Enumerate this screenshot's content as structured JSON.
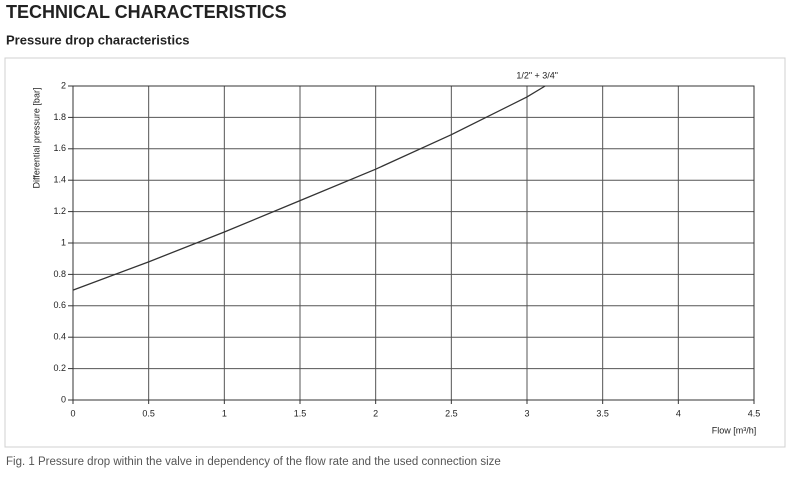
{
  "header": {
    "title": "TECHNICAL CHARACTERISTICS",
    "subtitle": "Pressure drop characteristics"
  },
  "chart_data": {
    "type": "line",
    "x_label": "Flow [m³/h]",
    "y_label": "Differential pressure [bar]",
    "x": [
      0,
      0.5,
      1,
      1.5,
      2,
      2.5,
      3,
      3.12
    ],
    "series": [
      {
        "name": "1/2\" + 3/4\"",
        "color": "#333333",
        "values": [
          0.7,
          0.88,
          1.07,
          1.27,
          1.47,
          1.69,
          1.93,
          2.0
        ]
      }
    ],
    "xlim": [
      0,
      4.5
    ],
    "ylim": [
      0,
      2
    ],
    "xticks": [
      0,
      0.5,
      1,
      1.5,
      2,
      2.5,
      3,
      3.5,
      4,
      4.5
    ],
    "yticks": [
      0,
      0.2,
      0.4,
      0.6,
      0.8,
      1,
      1.2,
      1.4,
      1.6,
      1.8,
      2
    ],
    "grid": true
  },
  "caption": "Fig. 1 Pressure drop within the valve in dependency of the flow rate and the used connection size"
}
